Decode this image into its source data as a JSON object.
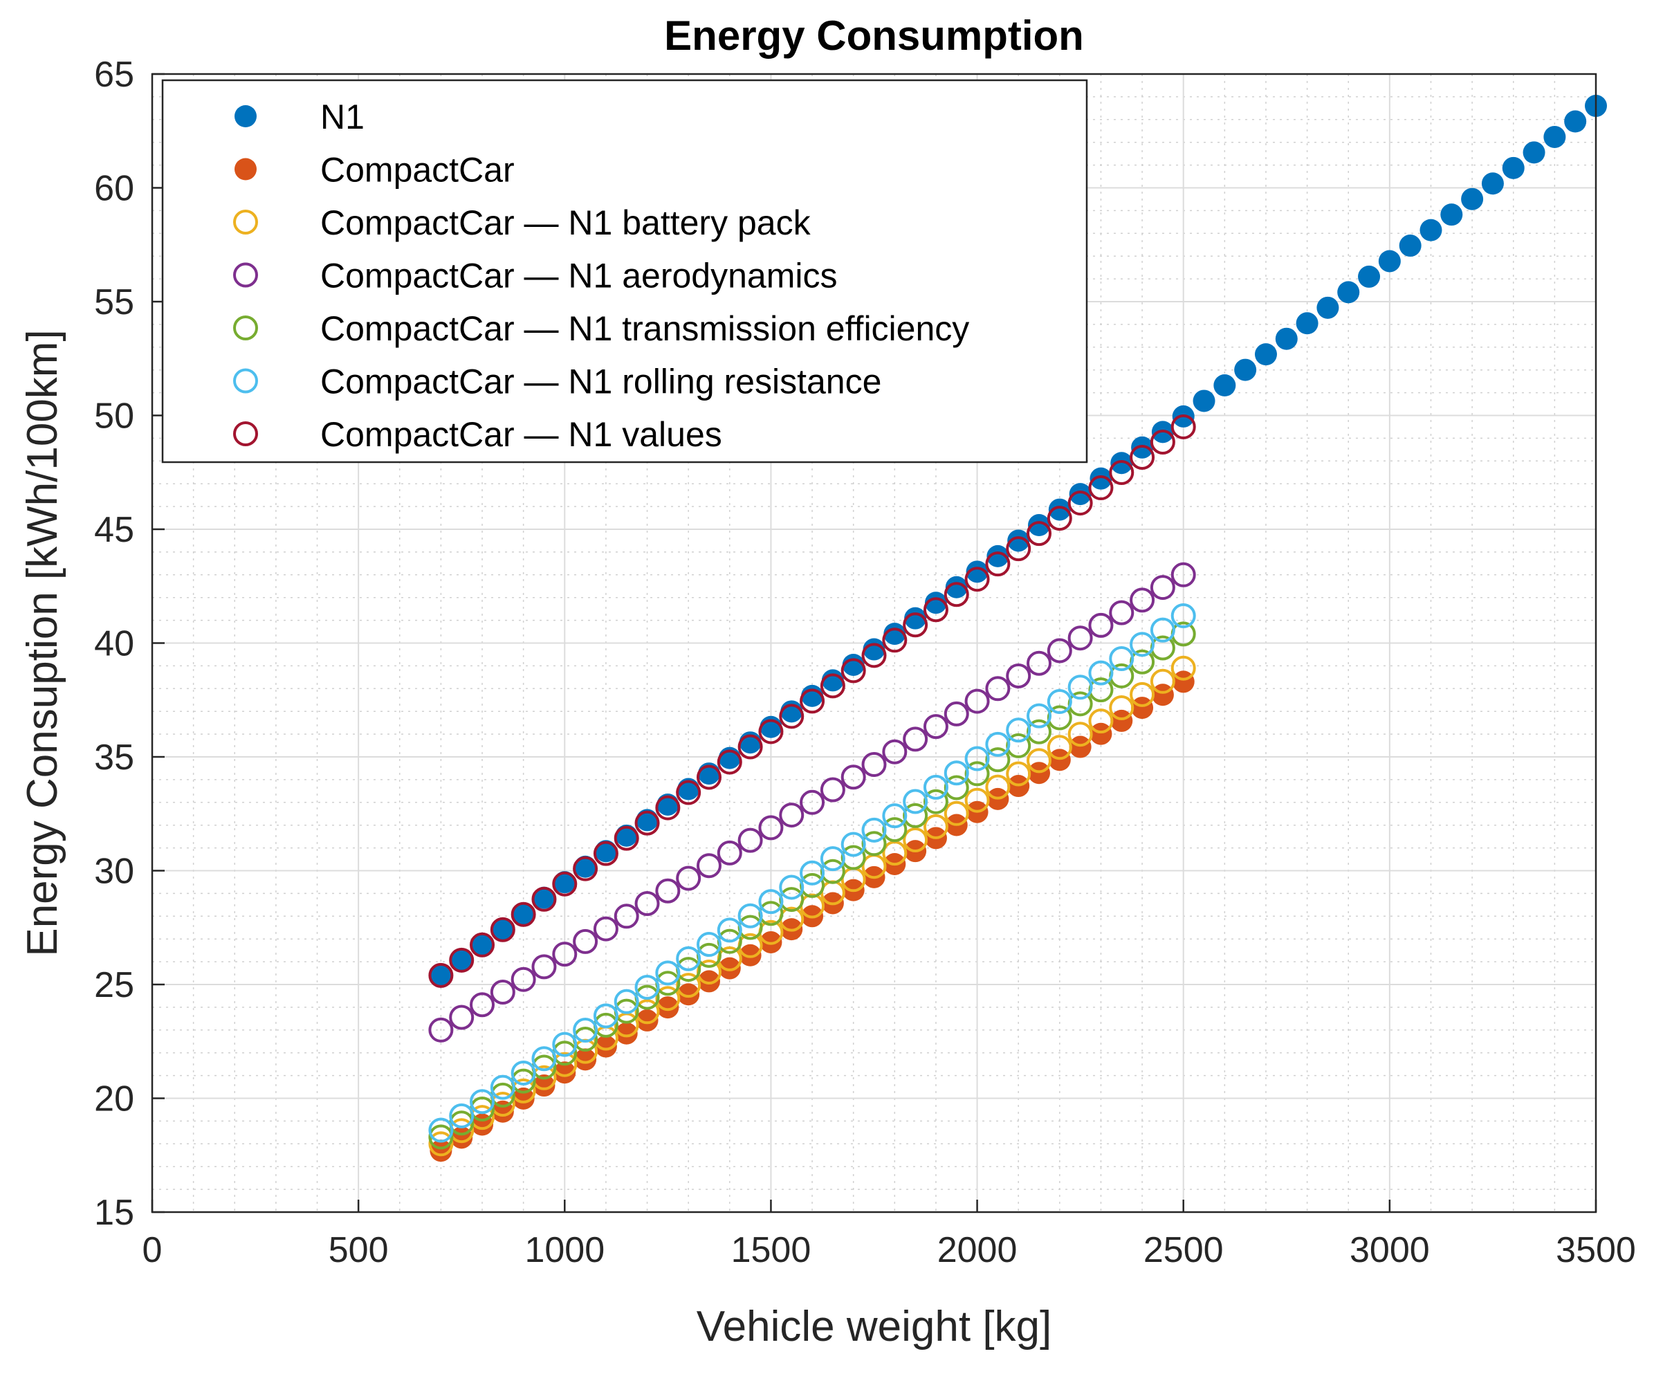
{
  "chart_data": {
    "type": "scatter",
    "title": "Energy Consumption",
    "xlabel": "Vehicle weight [kg]",
    "ylabel": "Energy Consuption [kWh/100km]",
    "xlim": [
      0,
      3500
    ],
    "ylim": [
      15,
      65
    ],
    "xticks": [
      0,
      500,
      1000,
      1500,
      2000,
      2500,
      3000,
      3500
    ],
    "yticks": [
      15,
      20,
      25,
      30,
      35,
      40,
      45,
      50,
      55,
      60,
      65
    ],
    "grid": true,
    "minor_grid": true,
    "legend_position": "top-left",
    "series": [
      {
        "name": "N1",
        "marker": "filled",
        "color": "#0072BD",
        "x_start": 700,
        "x_end": 3500,
        "x_step": 50,
        "y_start": 25.4,
        "y_end": 63.6
      },
      {
        "name": "CompactCar",
        "marker": "filled",
        "color": "#D95319",
        "x_start": 700,
        "x_end": 2500,
        "x_step": 50,
        "y_start": 17.7,
        "y_end": 38.3
      },
      {
        "name": "CompactCar — N1 battery pack",
        "marker": "open",
        "color": "#EDB120",
        "x_start": 700,
        "x_end": 2500,
        "x_step": 50,
        "y_start": 18.0,
        "y_end": 38.9
      },
      {
        "name": "CompactCar — N1 aerodynamics",
        "marker": "open",
        "color": "#7E2F8E",
        "x_start": 700,
        "x_end": 2500,
        "x_step": 50,
        "y_start": 23.0,
        "y_end": 43.0
      },
      {
        "name": "CompactCar — N1 transmission efficiency",
        "marker": "open",
        "color": "#77AC30",
        "x_start": 700,
        "x_end": 2500,
        "x_step": 50,
        "y_start": 18.3,
        "y_end": 40.4
      },
      {
        "name": "CompactCar — N1 rolling resistance",
        "marker": "open",
        "color": "#4DBEEE",
        "x_start": 700,
        "x_end": 2500,
        "x_step": 50,
        "y_start": 18.6,
        "y_end": 41.2
      },
      {
        "name": "CompactCar — N1 values",
        "marker": "open",
        "color": "#A2142F",
        "x_start": 700,
        "x_end": 2500,
        "x_step": 50,
        "y_start": 25.4,
        "y_end": 49.5
      }
    ]
  }
}
